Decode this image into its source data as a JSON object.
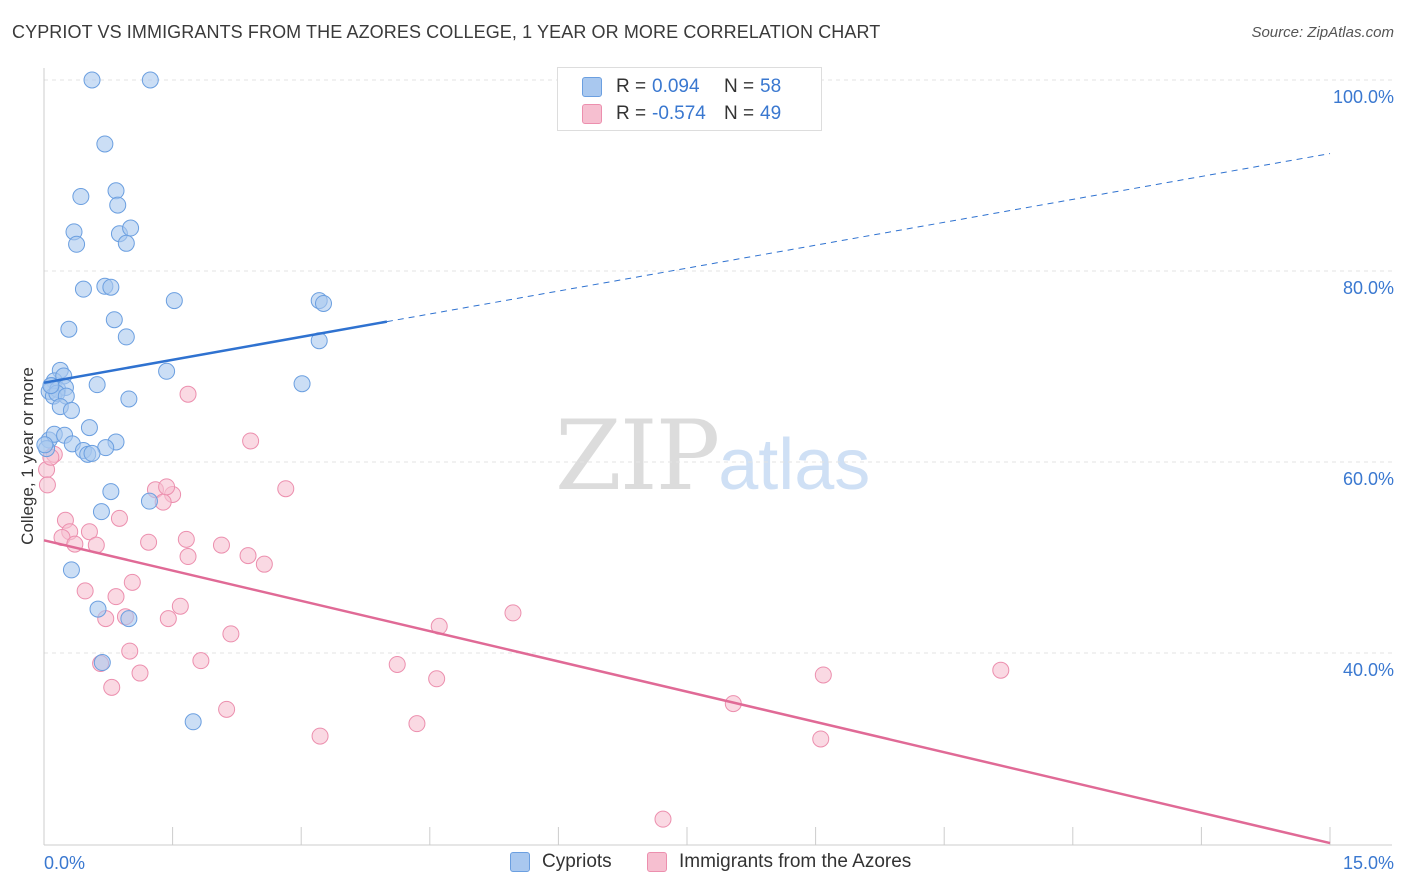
{
  "title": "CYPRIOT VS IMMIGRANTS FROM THE AZORES COLLEGE, 1 YEAR OR MORE CORRELATION CHART",
  "source": "Source: ZipAtlas.com",
  "watermark": {
    "zip": "ZIP",
    "atlas": "atlas"
  },
  "legend_top": {
    "rows": [
      {
        "r_label": "R =",
        "r_value": "0.094",
        "n_label": "N =",
        "n_value": "58"
      },
      {
        "r_label": "R =",
        "r_value": "-0.574",
        "n_label": "N =",
        "n_value": "49"
      }
    ]
  },
  "legend_bottom": {
    "series1": "Cypriots",
    "series2": "Immigrants from the Azores"
  },
  "colors": {
    "blue_fill": "#a9c8ef",
    "blue_stroke": "#6b9fe0",
    "blue_line": "#2f72d0",
    "pink_fill": "#f6bfd0",
    "pink_stroke": "#ec8fae",
    "pink_line": "#e06a96",
    "grid": "#e3e3e3",
    "axis_text": "#3a78d0"
  },
  "chart_data": {
    "type": "scatter",
    "title": "CYPRIOT VS IMMIGRANTS FROM THE AZORES COLLEGE, 1 YEAR OR MORE CORRELATION CHART",
    "xlabel": "",
    "ylabel": "College, 1 year or more",
    "xlim": [
      0,
      15
    ],
    "ylim": [
      20,
      102
    ],
    "x_tick_labels": [
      "0.0%",
      "15.0%"
    ],
    "y_ticks": [
      40,
      60,
      80,
      100
    ],
    "y_tick_labels": [
      "40.0%",
      "60.0%",
      "80.0%",
      "100.0%"
    ],
    "grid": true,
    "series": [
      {
        "name": "Cypriots",
        "R": 0.094,
        "N": 58,
        "trend": {
          "x0": 0.0,
          "y0": 68.3,
          "x1": 4.0,
          "y1": 74.7,
          "dash_x1": 15.0,
          "dash_y1": 92.3
        },
        "points": [
          [
            0.56,
            100.0
          ],
          [
            1.24,
            100.0
          ],
          [
            0.71,
            93.3
          ],
          [
            0.43,
            87.8
          ],
          [
            0.84,
            88.4
          ],
          [
            0.86,
            86.9
          ],
          [
            0.35,
            84.1
          ],
          [
            0.88,
            83.9
          ],
          [
            1.01,
            84.5
          ],
          [
            0.38,
            82.8
          ],
          [
            0.96,
            82.9
          ],
          [
            0.46,
            78.1
          ],
          [
            0.71,
            78.4
          ],
          [
            0.78,
            78.3
          ],
          [
            1.52,
            76.9
          ],
          [
            3.21,
            76.9
          ],
          [
            3.26,
            76.6
          ],
          [
            0.82,
            74.9
          ],
          [
            0.29,
            73.9
          ],
          [
            0.96,
            73.1
          ],
          [
            3.21,
            72.7
          ],
          [
            1.43,
            69.5
          ],
          [
            0.19,
            69.6
          ],
          [
            0.12,
            68.5
          ],
          [
            0.23,
            69.0
          ],
          [
            0.09,
            68.0
          ],
          [
            0.06,
            67.4
          ],
          [
            0.16,
            67.6
          ],
          [
            0.25,
            67.8
          ],
          [
            0.11,
            66.9
          ],
          [
            0.15,
            67.2
          ],
          [
            0.62,
            68.1
          ],
          [
            0.26,
            66.9
          ],
          [
            3.01,
            68.2
          ],
          [
            0.99,
            66.6
          ],
          [
            0.19,
            65.8
          ],
          [
            0.32,
            65.4
          ],
          [
            0.53,
            63.6
          ],
          [
            0.06,
            62.3
          ],
          [
            0.12,
            62.9
          ],
          [
            0.24,
            62.8
          ],
          [
            0.33,
            61.9
          ],
          [
            0.84,
            62.1
          ],
          [
            0.03,
            61.4
          ],
          [
            0.46,
            61.2
          ],
          [
            0.72,
            61.5
          ],
          [
            0.51,
            60.8
          ],
          [
            0.56,
            60.9
          ],
          [
            0.78,
            56.9
          ],
          [
            1.23,
            55.9
          ],
          [
            0.67,
            54.8
          ],
          [
            0.32,
            48.7
          ],
          [
            0.63,
            44.6
          ],
          [
            0.99,
            43.6
          ],
          [
            0.68,
            39.0
          ],
          [
            1.74,
            32.8
          ],
          [
            0.01,
            61.8
          ],
          [
            0.08,
            68.0
          ]
        ]
      },
      {
        "name": "Immigrants from the Azores",
        "R": -0.574,
        "N": 49,
        "trend": {
          "x0": 0.0,
          "y0": 51.8,
          "x1": 15.0,
          "y1": 20.1
        },
        "points": [
          [
            0.03,
            59.2
          ],
          [
            0.04,
            57.6
          ],
          [
            0.12,
            60.8
          ],
          [
            0.25,
            53.9
          ],
          [
            0.3,
            52.7
          ],
          [
            0.21,
            52.1
          ],
          [
            0.36,
            51.4
          ],
          [
            0.53,
            52.7
          ],
          [
            0.61,
            51.3
          ],
          [
            0.88,
            54.1
          ],
          [
            1.5,
            56.6
          ],
          [
            1.3,
            57.1
          ],
          [
            1.39,
            55.8
          ],
          [
            1.43,
            57.4
          ],
          [
            1.68,
            50.1
          ],
          [
            1.22,
            51.6
          ],
          [
            1.66,
            51.9
          ],
          [
            2.07,
            51.3
          ],
          [
            2.38,
            50.2
          ],
          [
            2.57,
            49.3
          ],
          [
            2.82,
            57.2
          ],
          [
            2.41,
            62.2
          ],
          [
            1.68,
            67.1
          ],
          [
            0.48,
            46.5
          ],
          [
            1.03,
            47.4
          ],
          [
            0.84,
            45.9
          ],
          [
            0.95,
            43.8
          ],
          [
            0.72,
            43.6
          ],
          [
            1.45,
            43.6
          ],
          [
            1.59,
            44.9
          ],
          [
            2.18,
            42.0
          ],
          [
            1.0,
            40.2
          ],
          [
            0.66,
            38.9
          ],
          [
            1.12,
            37.9
          ],
          [
            0.79,
            36.4
          ],
          [
            1.83,
            39.2
          ],
          [
            2.13,
            34.1
          ],
          [
            3.22,
            31.3
          ],
          [
            4.12,
            38.8
          ],
          [
            4.35,
            32.6
          ],
          [
            4.58,
            37.3
          ],
          [
            4.61,
            42.8
          ],
          [
            5.47,
            44.2
          ],
          [
            8.04,
            34.7
          ],
          [
            9.09,
            37.7
          ],
          [
            9.06,
            31.0
          ],
          [
            11.16,
            38.2
          ],
          [
            7.22,
            22.6
          ],
          [
            0.08,
            60.5
          ]
        ]
      }
    ]
  }
}
